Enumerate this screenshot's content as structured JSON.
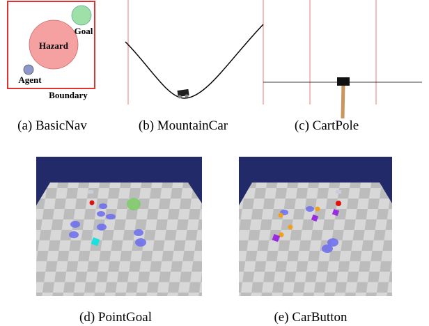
{
  "subfigures": [
    {
      "caption": "(a) BasicNav",
      "labels": {
        "goal": "Goal",
        "hazard": "Hazard",
        "agent": "Agent",
        "boundary": "Boundary"
      }
    },
    {
      "caption": "(b) MountainCar"
    },
    {
      "caption": "(c) CartPole"
    },
    {
      "caption": "(d) PointGoal"
    },
    {
      "caption": "(e) CarButton"
    }
  ]
}
